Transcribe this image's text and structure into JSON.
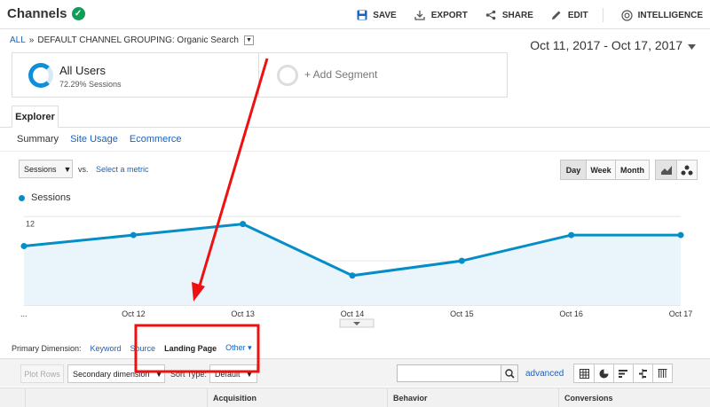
{
  "header": {
    "title": "Channels",
    "toolbar": [
      {
        "label": "SAVE",
        "icon": "save-icon"
      },
      {
        "label": "EXPORT",
        "icon": "export-icon"
      },
      {
        "label": "SHARE",
        "icon": "share-icon"
      },
      {
        "label": "EDIT",
        "icon": "pencil-icon"
      },
      {
        "label": "INTELLIGENCE",
        "icon": "intelligence-icon"
      }
    ]
  },
  "breadcrumb": {
    "root": "ALL",
    "separator": "»",
    "path": "DEFAULT CHANNEL GROUPING: Organic Search"
  },
  "date_range": "Oct 11, 2017 - Oct 17, 2017",
  "segments": {
    "primary": {
      "name": "All Users",
      "sub": "72.29% Sessions"
    },
    "add_label": "+ Add Segment"
  },
  "tabs": {
    "explorer": "Explorer"
  },
  "subtabs": [
    "Summary",
    "Site Usage",
    "Ecommerce"
  ],
  "metric": {
    "selected": "Sessions",
    "vs": "vs.",
    "select_other": "Select a metric"
  },
  "period_buttons": [
    "Day",
    "Week",
    "Month"
  ],
  "legend": {
    "series": "Sessions"
  },
  "chart_data": {
    "type": "area",
    "categories": [
      "...",
      "Oct 12",
      "Oct 13",
      "Oct 14",
      "Oct 15",
      "Oct 16",
      "Oct 17"
    ],
    "series": [
      {
        "name": "Sessions",
        "values": [
          8,
          9.5,
          11,
          4,
          6,
          9.5,
          9.5
        ]
      }
    ],
    "yticks": [
      "12",
      "6"
    ],
    "ylim": [
      0,
      13
    ],
    "grid": true,
    "color": "#058dc7"
  },
  "primary_dimension": {
    "label": "Primary Dimension:",
    "items": [
      "Keyword",
      "Source",
      "Landing Page",
      "Other"
    ],
    "active": "Landing Page"
  },
  "table_controls": {
    "plot_rows": "Plot Rows",
    "secondary": "Secondary dimension",
    "sort_label": "Sort Type:",
    "sort_value": "Default",
    "advanced": "advanced"
  },
  "table_headers": [
    "Acquisition",
    "Behavior",
    "Conversions"
  ],
  "annotation_color": "#ee1111"
}
